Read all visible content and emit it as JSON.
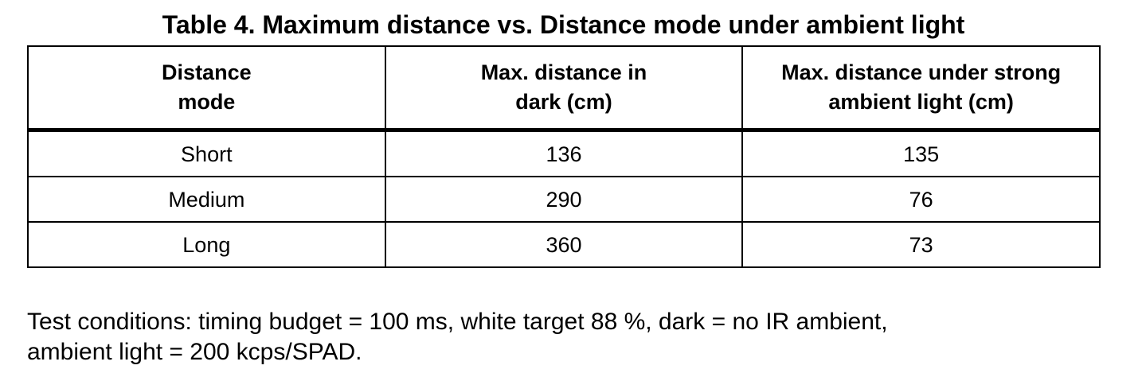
{
  "table": {
    "caption": "Table 4. Maximum distance vs. Distance mode under ambient light",
    "headers": [
      [
        "Distance",
        "mode"
      ],
      [
        "Max. distance in",
        "dark (cm)"
      ],
      [
        "Max. distance under strong",
        "ambient light (cm)"
      ]
    ],
    "rows": [
      [
        "Short",
        "136",
        "135"
      ],
      [
        "Medium",
        "290",
        "76"
      ],
      [
        "Long",
        "360",
        "73"
      ]
    ]
  },
  "notes": {
    "line1": "Test conditions: timing budget = 100 ms, white target 88 %, dark = no IR ambient,",
    "line2": "ambient light = 200 kcps/SPAD."
  }
}
